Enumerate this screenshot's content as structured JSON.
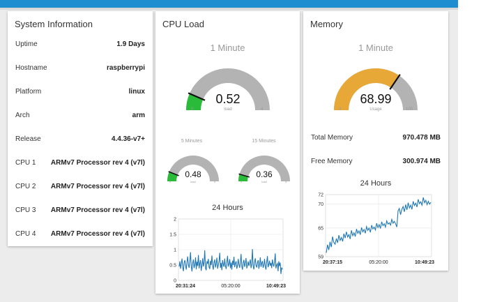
{
  "colors": {
    "accent": "#1e8ed1",
    "green": "#2bbb3a",
    "gauge_gray": "#b3b3b3",
    "memory_orange": "#e8a838",
    "series": "#1f77b4"
  },
  "system_info": {
    "title": "System Information",
    "rows": [
      {
        "key": "Uptime",
        "value": "1.9 Days"
      },
      {
        "key": "Hostname",
        "value": "raspberrypi"
      },
      {
        "key": "Platform",
        "value": "linux"
      },
      {
        "key": "Arch",
        "value": "arm"
      },
      {
        "key": "Release",
        "value": "4.4.36-v7+"
      },
      {
        "key": "CPU 1",
        "value": "ARMv7 Processor rev 4 (v7l)"
      },
      {
        "key": "CPU 2",
        "value": "ARMv7 Processor rev 4 (v7l)"
      },
      {
        "key": "CPU 3",
        "value": "ARMv7 Processor rev 4 (v7l)"
      },
      {
        "key": "CPU 4",
        "value": "ARMv7 Processor rev 4 (v7l)"
      }
    ]
  },
  "cpu": {
    "title": "CPU Load",
    "gauge_1m": {
      "title": "1 Minute",
      "value": "0.52",
      "numeric": 0.52,
      "unit": "load",
      "min": "0",
      "max": "4",
      "min_num": 0,
      "max_num": 4
    },
    "gauge_5m": {
      "title": "5 Minutes",
      "value": "0.48",
      "numeric": 0.48,
      "unit": "load",
      "min": "0",
      "max": "4",
      "min_num": 0,
      "max_num": 4
    },
    "gauge_15m": {
      "title": "15 Minutes",
      "value": "0.36",
      "numeric": 0.36,
      "unit": "load",
      "min": "0",
      "max": "4",
      "min_num": 0,
      "max_num": 4
    },
    "chart_title": "24 Hours"
  },
  "memory": {
    "title": "Memory",
    "gauge": {
      "title": "1 Minute",
      "value": "68.99",
      "numeric": 68.99,
      "unit": "Usage",
      "min": "0",
      "max": "100",
      "min_num": 0,
      "max_num": 100
    },
    "rows": [
      {
        "key": "Total Memory",
        "value": "970.478 MB"
      },
      {
        "key": "Free Memory",
        "value": "300.974 MB"
      }
    ],
    "chart_title": "24 Hours"
  },
  "chart_data": [
    {
      "type": "line",
      "title": "24 Hours",
      "x_ticks": [
        "20:31:24",
        "05:20:00",
        "10:49:23"
      ],
      "y_ticks": [
        "0",
        "0.5",
        "1",
        "1.5",
        "2"
      ],
      "ylim": [
        0,
        2
      ],
      "grid": true,
      "series": [
        {
          "values": [
            0.45,
            0.62,
            0.38,
            0.55,
            0.71,
            0.42,
            0.3,
            0.58,
            0.66,
            0.48,
            0.35,
            0.6,
            0.78,
            0.5,
            0.41,
            0.63,
            0.92,
            0.44,
            0.29,
            0.57,
            0.68,
            0.4,
            0.52,
            0.75,
            0.36,
            0.61,
            0.47,
            0.83,
            0.39,
            0.55,
            0.66,
            0.31,
            0.5,
            0.72,
            0.45,
            0.58,
            0.98,
            0.4,
            0.33,
            0.62,
            0.54,
            0.7,
            0.43,
            0.37,
            0.64,
            0.5,
            0.81,
            0.46,
            0.35,
            0.59,
            0.68,
            0.42,
            0.55,
            0.74,
            0.38,
            0.49,
            0.63,
            0.9,
            0.41,
            0.57,
            0.33,
            0.66,
            0.52,
            0.44,
            0.71,
            0.48,
            0.37,
            0.6,
            0.8,
            0.45,
            0.53,
            0.69,
            0.4,
            0.58,
            0.35,
            0.64,
            0.5,
            0.77,
            0.43,
            0.56,
            0.62,
            0.38,
            0.48,
            0.7,
            0.52,
            0.41,
            0.6,
            0.86,
            0.46,
            0.35,
            0.58,
            0.67,
            0.44,
            0.54,
            0.73,
            0.39,
            0.5,
            0.62,
            0.47,
            0.56,
            0.68,
            0.4,
            0.53,
            1.02,
            0.45,
            0.36,
            0.6,
            0.72,
            0.49,
            0.42,
            0.58,
            0.66,
            0.38,
            0.51,
            0.75,
            0.44,
            0.56,
            0.63,
            0.41,
            0.5,
            0.7,
            0.46,
            0.35,
            0.59,
            0.79,
            0.43,
            0.52,
            0.64,
            0.48,
            0.57,
            0.4,
            0.68,
            0.53,
            0.45,
            0.61,
            0.88,
            0.39,
            0.5,
            0.55,
            0.3,
            0.62,
            0.47,
            0.58,
            0.21,
            0.42,
            0.36
          ]
        }
      ]
    },
    {
      "type": "line",
      "title": "24 Hours",
      "x_ticks": [
        "20:37:15",
        "05:20:00",
        "10:49:23"
      ],
      "y_ticks": [
        "59",
        "65",
        "70",
        "72"
      ],
      "ylim": [
        59,
        72
      ],
      "grid": true,
      "series": [
        {
          "values": [
            59.8,
            61.5,
            60.4,
            62.1,
            61.0,
            63.2,
            62.0,
            61.6,
            62.8,
            61.9,
            63.5,
            62.4,
            63.0,
            62.2,
            63.8,
            62.9,
            64.2,
            63.1,
            63.6,
            62.7,
            64.5,
            63.4,
            64.0,
            63.2,
            64.8,
            63.9,
            64.4,
            63.6,
            65.1,
            64.2,
            64.7,
            63.9,
            65.3,
            64.5,
            65.0,
            64.1,
            65.6,
            64.8,
            65.2,
            64.6,
            66.0,
            65.1,
            65.7,
            64.9,
            66.3,
            65.5,
            65.9,
            65.2,
            66.5,
            65.8,
            66.1,
            65.6,
            66.8,
            66.0,
            66.4,
            65.9,
            65.2,
            68.6,
            69.1,
            67.8,
            68.9,
            69.5,
            68.4,
            69.9,
            68.8,
            70.3,
            69.2,
            69.8,
            68.9,
            70.6,
            69.7,
            70.2,
            69.4,
            71.0,
            70.1,
            70.5,
            69.8,
            71.4,
            70.3,
            70.8,
            69.9,
            70.6,
            70.0,
            70.4
          ]
        }
      ]
    }
  ]
}
